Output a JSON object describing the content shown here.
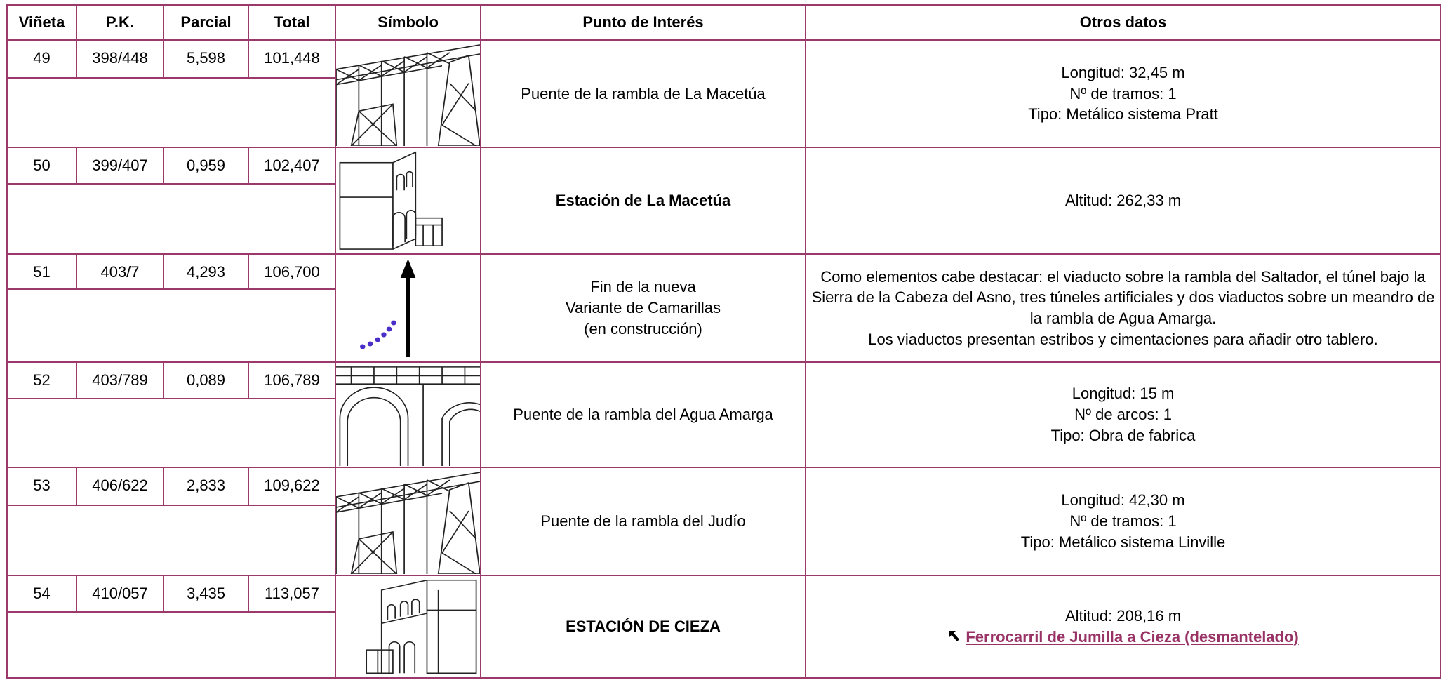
{
  "header": [
    "Viñeta",
    "P.K.",
    "Parcial",
    "Total",
    "Símbolo",
    "Punto de Interés",
    "Otros datos"
  ],
  "rows": [
    {
      "vineta": "49",
      "pk": "398/448",
      "parcial": "5,598",
      "total": "101,448",
      "punto": [
        "Puente de la rambla de La Macetúa"
      ],
      "bold": false,
      "otros": [
        "Longitud: 32,45 m",
        "Nº de tramos: 1",
        "Tipo: Metálico sistema Pratt"
      ]
    },
    {
      "vineta": "50",
      "pk": "399/407",
      "parcial": "0,959",
      "total": "102,407",
      "punto": [
        "Estación de La Macetúa"
      ],
      "bold": true,
      "otros": [
        "Altitud: 262,33 m"
      ]
    },
    {
      "vineta": "51",
      "pk": "403/7",
      "parcial": "4,293",
      "total": "106,700",
      "punto": [
        "Fin de la nueva",
        "Variante de Camarillas",
        "(en construcción)"
      ],
      "bold": false,
      "otros": [
        "Como elementos cabe destacar: el viaducto sobre la rambla del Saltador, el túnel bajo la Sierra de la Cabeza del Asno, tres túneles artificiales y dos viaductos sobre un meandro de la rambla de Agua Amarga.",
        "Los viaductos presentan estribos y cimentaciones para añadir otro tablero."
      ]
    },
    {
      "vineta": "52",
      "pk": "403/789",
      "parcial": "0,089",
      "total": "106,789",
      "punto": [
        "Puente de la rambla del Agua Amarga"
      ],
      "bold": false,
      "otros": [
        "Longitud: 15 m",
        "Nº de arcos: 1",
        "Tipo: Obra de fabrica"
      ]
    },
    {
      "vineta": "53",
      "pk": "406/622",
      "parcial": "2,833",
      "total": "109,622",
      "punto": [
        "Puente de la rambla del Judío"
      ],
      "bold": false,
      "otros": [
        "Longitud: 42,30 m",
        "Nº de tramos: 1",
        "Tipo: Metálico sistema Linville"
      ]
    },
    {
      "vineta": "54",
      "pk": "410/057",
      "parcial": "3,435",
      "total": "113,057",
      "punto": [
        "ESTACIÓN DE CIEZA"
      ],
      "bold": true,
      "otros": [
        "Altitud: 208,16 m"
      ],
      "link": "Ferrocarril de Jumilla a Cieza (desmantelado)"
    }
  ]
}
